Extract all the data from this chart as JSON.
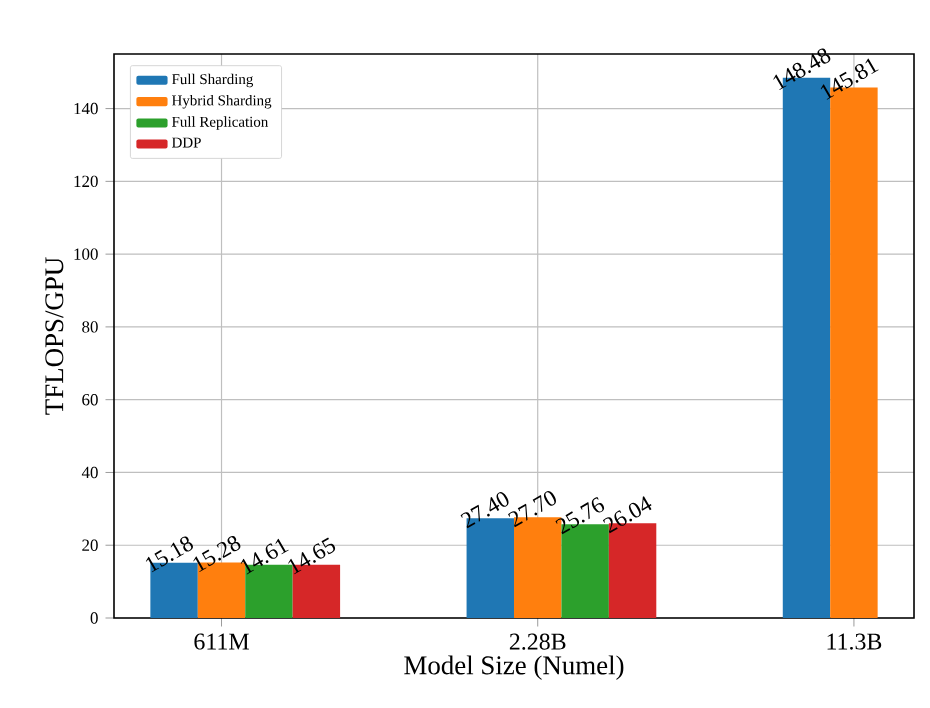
{
  "chart_data": {
    "type": "bar",
    "xlabel": "Model Size (Numel)",
    "ylabel": "TFLOPS/GPU",
    "categories": [
      "611M",
      "2.28B",
      "11.3B"
    ],
    "series": [
      {
        "name": "Full Sharding",
        "color": "#1f77b4",
        "values": [
          15.18,
          27.4,
          148.48
        ],
        "value_labels": [
          "15.18",
          "27.40",
          "148.48"
        ]
      },
      {
        "name": "Hybrid Sharding",
        "color": "#ff7f0e",
        "values": [
          15.28,
          27.7,
          145.81
        ],
        "value_labels": [
          "15.28",
          "27.70",
          "145.81"
        ]
      },
      {
        "name": "Full Replication",
        "color": "#2ca02c",
        "values": [
          14.61,
          25.76,
          null
        ],
        "value_labels": [
          "14.61",
          "25.76",
          null
        ]
      },
      {
        "name": "DDP",
        "color": "#d62728",
        "values": [
          14.65,
          26.04,
          null
        ],
        "value_labels": [
          "14.65",
          "26.04",
          null
        ]
      }
    ],
    "ylim": [
      0,
      155
    ],
    "yticks": [
      0,
      20,
      40,
      60,
      80,
      100,
      120,
      140
    ],
    "grid": true,
    "legend": "top left"
  }
}
